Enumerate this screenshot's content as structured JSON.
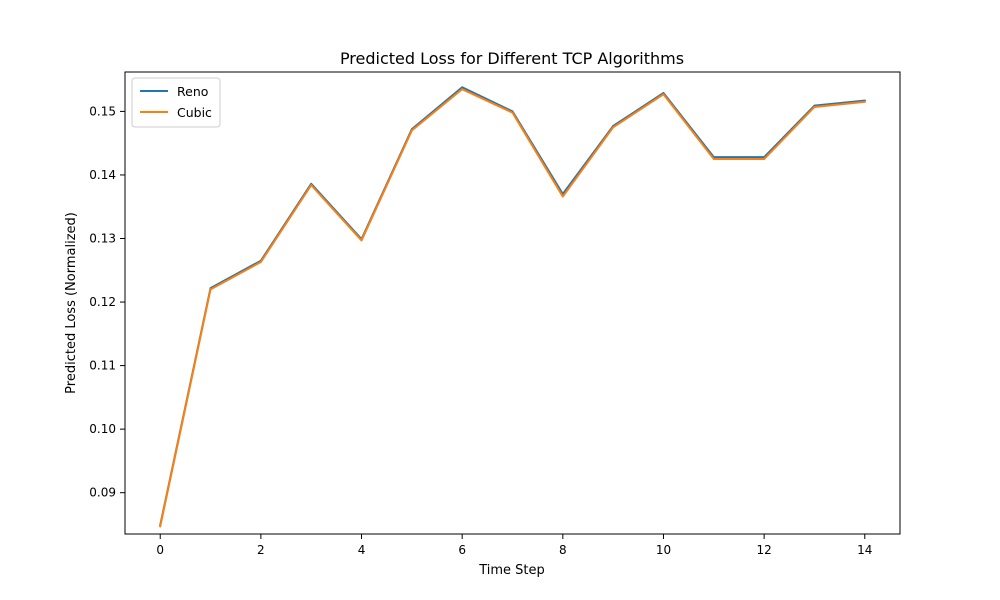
{
  "chart_data": {
    "type": "line",
    "title": "Predicted Loss for Different TCP Algorithms",
    "xlabel": "Time Step",
    "ylabel": "Predicted Loss (Normalized)",
    "xlim": [
      -0.7,
      14.7
    ],
    "ylim": [
      0.0835,
      0.1562
    ],
    "xticks": [
      0,
      2,
      4,
      6,
      8,
      10,
      12,
      14
    ],
    "xtick_labels": [
      "0",
      "2",
      "4",
      "6",
      "8",
      "10",
      "12",
      "14"
    ],
    "yticks": [
      0.09,
      0.1,
      0.11,
      0.12,
      0.13,
      0.14,
      0.15
    ],
    "ytick_labels": [
      "0.09",
      "0.10",
      "0.11",
      "0.12",
      "0.13",
      "0.14",
      "0.15"
    ],
    "grid": false,
    "legend_position": "top-left",
    "x": [
      0,
      1,
      2,
      3,
      4,
      5,
      6,
      7,
      8,
      9,
      10,
      11,
      12,
      13,
      14
    ],
    "series": [
      {
        "name": "Reno",
        "color": "#1f77b4",
        "values": [
          0.0849,
          0.1222,
          0.1265,
          0.1386,
          0.1299,
          0.1472,
          0.1538,
          0.15,
          0.137,
          0.1477,
          0.1529,
          0.1428,
          0.1428,
          0.1509,
          0.1517
        ]
      },
      {
        "name": "Cubic",
        "color": "#ff7f0e",
        "values": [
          0.0847,
          0.122,
          0.1263,
          0.1384,
          0.1297,
          0.147,
          0.1535,
          0.1498,
          0.1366,
          0.1475,
          0.1527,
          0.1425,
          0.1425,
          0.1507,
          0.1515
        ]
      }
    ]
  }
}
